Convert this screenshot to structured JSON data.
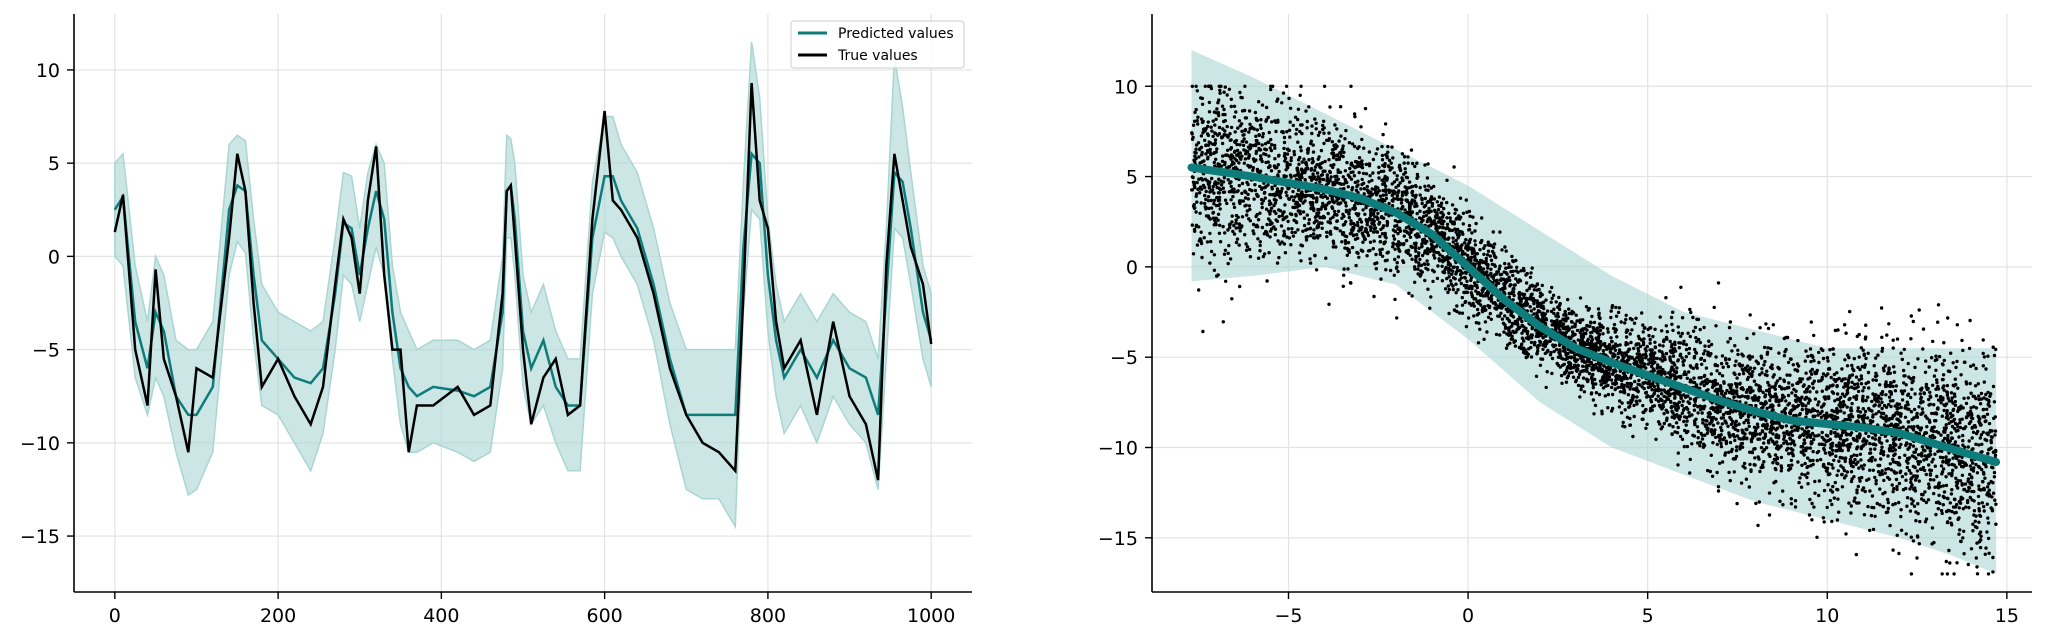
{
  "chart_data": [
    {
      "type": "line",
      "title": "",
      "xlabel": "",
      "ylabel": "",
      "xlim": [
        -50,
        1050
      ],
      "ylim": [
        -18,
        13
      ],
      "xticks": [
        0,
        200,
        400,
        600,
        800,
        1000
      ],
      "yticks": [
        10,
        5,
        0,
        -5,
        -10,
        -15
      ],
      "grid": true,
      "legend": {
        "placement": "top-right",
        "entries": [
          "Predicted values",
          "True values"
        ]
      },
      "colors": {
        "predicted": "#0e7c7b",
        "true": "#000000",
        "band": "#a9d6d2"
      },
      "x": [
        0,
        10,
        25,
        40,
        50,
        60,
        75,
        90,
        100,
        120,
        140,
        150,
        160,
        170,
        180,
        200,
        220,
        240,
        255,
        270,
        280,
        290,
        300,
        310,
        320,
        330,
        340,
        350,
        360,
        370,
        390,
        420,
        440,
        460,
        475,
        480,
        485,
        490,
        500,
        510,
        525,
        540,
        555,
        570,
        585,
        600,
        610,
        620,
        640,
        660,
        680,
        700,
        720,
        740,
        760,
        770,
        780,
        790,
        800,
        810,
        820,
        840,
        860,
        880,
        900,
        920,
        935,
        945,
        955,
        965,
        975,
        990,
        1000
      ],
      "series": [
        {
          "name": "Predicted values",
          "values": [
            2.5,
            3.2,
            -3.5,
            -6.0,
            -3.0,
            -4.0,
            -7.5,
            -8.5,
            -8.5,
            -7.0,
            2.5,
            3.8,
            3.5,
            -1.0,
            -4.5,
            -5.5,
            -6.5,
            -6.8,
            -6.0,
            -2.0,
            1.8,
            1.5,
            -1.0,
            1.5,
            3.5,
            2.0,
            -3.0,
            -6.0,
            -7.0,
            -7.5,
            -7.0,
            -7.2,
            -7.5,
            -7.0,
            -3.0,
            3.5,
            3.8,
            2.0,
            -4.0,
            -6.0,
            -4.5,
            -7.0,
            -8.0,
            -8.0,
            1.0,
            4.3,
            4.3,
            3.0,
            1.5,
            -1.5,
            -5.5,
            -8.5,
            -8.5,
            -8.5,
            -8.5,
            0.5,
            5.5,
            5.0,
            -1.0,
            -4.5,
            -6.5,
            -5.0,
            -6.5,
            -4.5,
            -6.0,
            -6.5,
            -8.5,
            -2.0,
            4.5,
            4.0,
            1.5,
            -3.0,
            -4.5
          ]
        },
        {
          "name": "True values",
          "values": [
            1.3,
            3.3,
            -5.0,
            -8.0,
            -0.7,
            -5.5,
            -7.5,
            -10.5,
            -6.0,
            -6.5,
            1.0,
            5.5,
            3.5,
            -2.5,
            -7.0,
            -5.5,
            -7.5,
            -9.0,
            -7.0,
            -1.5,
            2.0,
            1.0,
            -2.0,
            3.0,
            5.9,
            -1.0,
            -5.0,
            -5.0,
            -10.5,
            -8.0,
            -8.0,
            -7.0,
            -8.5,
            -8.0,
            -2.0,
            3.5,
            3.8,
            1.0,
            -5.0,
            -9.0,
            -6.5,
            -5.5,
            -8.5,
            -8.0,
            2.0,
            7.8,
            3.0,
            2.5,
            1.0,
            -2.0,
            -6.0,
            -8.5,
            -10.0,
            -10.5,
            -11.5,
            -2.0,
            9.3,
            3.0,
            1.5,
            -3.5,
            -6.0,
            -4.5,
            -8.5,
            -3.5,
            -7.5,
            -9.0,
            -12.0,
            -0.5,
            5.5,
            3.0,
            0.5,
            -1.5,
            -4.7
          ]
        }
      ],
      "band_lower": [
        0.0,
        -0.5,
        -6.5,
        -8.5,
        -6.5,
        -7.5,
        -10.5,
        -12.8,
        -12.5,
        -10.5,
        -1.0,
        0.8,
        0.2,
        -4.5,
        -8.0,
        -8.5,
        -10.0,
        -11.5,
        -9.5,
        -5.0,
        -1.0,
        -1.5,
        -3.5,
        -1.5,
        0.5,
        -1.0,
        -5.5,
        -9.0,
        -10.5,
        -10.5,
        -10.0,
        -10.5,
        -11.0,
        -10.5,
        -6.0,
        1.0,
        1.0,
        -1.0,
        -7.0,
        -9.0,
        -8.0,
        -10.0,
        -11.5,
        -11.5,
        -2.0,
        1.3,
        1.0,
        0.0,
        -1.5,
        -4.5,
        -9.0,
        -12.5,
        -13.0,
        -13.0,
        -14.5,
        -3.0,
        2.5,
        2.0,
        -4.0,
        -7.5,
        -9.5,
        -8.0,
        -10.0,
        -7.5,
        -9.0,
        -10.0,
        -12.5,
        -5.5,
        1.5,
        1.0,
        -1.5,
        -5.5,
        -7.0
      ],
      "band_upper": [
        5.0,
        5.5,
        -0.5,
        -3.5,
        0.0,
        -1.0,
        -4.5,
        -5.0,
        -5.0,
        -3.5,
        6.0,
        6.5,
        6.2,
        2.0,
        -1.5,
        -3.0,
        -3.5,
        -4.0,
        -3.5,
        1.0,
        4.5,
        4.3,
        1.5,
        4.5,
        6.0,
        5.0,
        -0.5,
        -3.0,
        -4.0,
        -5.0,
        -4.5,
        -4.5,
        -5.0,
        -4.5,
        0.0,
        6.5,
        6.3,
        5.0,
        -1.0,
        -3.0,
        -1.5,
        -4.0,
        -5.5,
        -5.5,
        4.0,
        7.5,
        7.5,
        6.0,
        4.5,
        1.5,
        -2.5,
        -5.0,
        -5.0,
        -5.0,
        -5.0,
        4.0,
        11.5,
        8.5,
        2.0,
        -1.5,
        -3.5,
        -2.0,
        -3.5,
        -2.0,
        -3.0,
        -3.5,
        -5.5,
        1.5,
        10.7,
        8.0,
        4.5,
        -0.5,
        -2.0
      ]
    },
    {
      "type": "scatter",
      "title": "",
      "xlabel": "",
      "ylabel": "",
      "xlim": [
        -8.8,
        15.7
      ],
      "ylim": [
        -18,
        14
      ],
      "xticks": [
        -5,
        0,
        5,
        10,
        15
      ],
      "yticks": [
        10,
        5,
        0,
        -5,
        -10,
        -15
      ],
      "grid": true,
      "colors": {
        "mean": "#0e7c7b",
        "points": "#000000",
        "band": "#a9d6d2"
      },
      "mean_x": [
        -7.7,
        -6.0,
        -4.0,
        -3.0,
        -2.0,
        -1.0,
        0.0,
        1.0,
        2.0,
        3.0,
        4.0,
        5.0,
        6.0,
        7.0,
        8.0,
        9.0,
        10.0,
        11.0,
        12.0,
        13.0,
        14.0,
        14.7
      ],
      "mean_y": [
        5.5,
        5.0,
        4.3,
        3.8,
        3.0,
        1.8,
        0.0,
        -1.8,
        -3.3,
        -4.5,
        -5.3,
        -6.0,
        -6.7,
        -7.4,
        -8.0,
        -8.5,
        -8.7,
        -8.9,
        -9.2,
        -9.8,
        -10.4,
        -10.8
      ],
      "band_x": [
        -7.7,
        -6.0,
        -4.0,
        -2.0,
        0.0,
        2.0,
        4.0,
        6.0,
        8.0,
        10.0,
        12.0,
        13.5,
        14.7
      ],
      "band_upper": [
        12.0,
        10.5,
        8.5,
        6.5,
        4.5,
        2.0,
        -0.5,
        -2.5,
        -3.5,
        -4.5,
        -4.5,
        -4.5,
        -4.5
      ],
      "band_lower": [
        -0.8,
        -0.5,
        0.0,
        -1.0,
        -4.0,
        -7.5,
        -10.0,
        -11.5,
        -13.0,
        -14.0,
        -15.0,
        -16.0,
        -17.0
      ],
      "point_count": 6500
    }
  ]
}
